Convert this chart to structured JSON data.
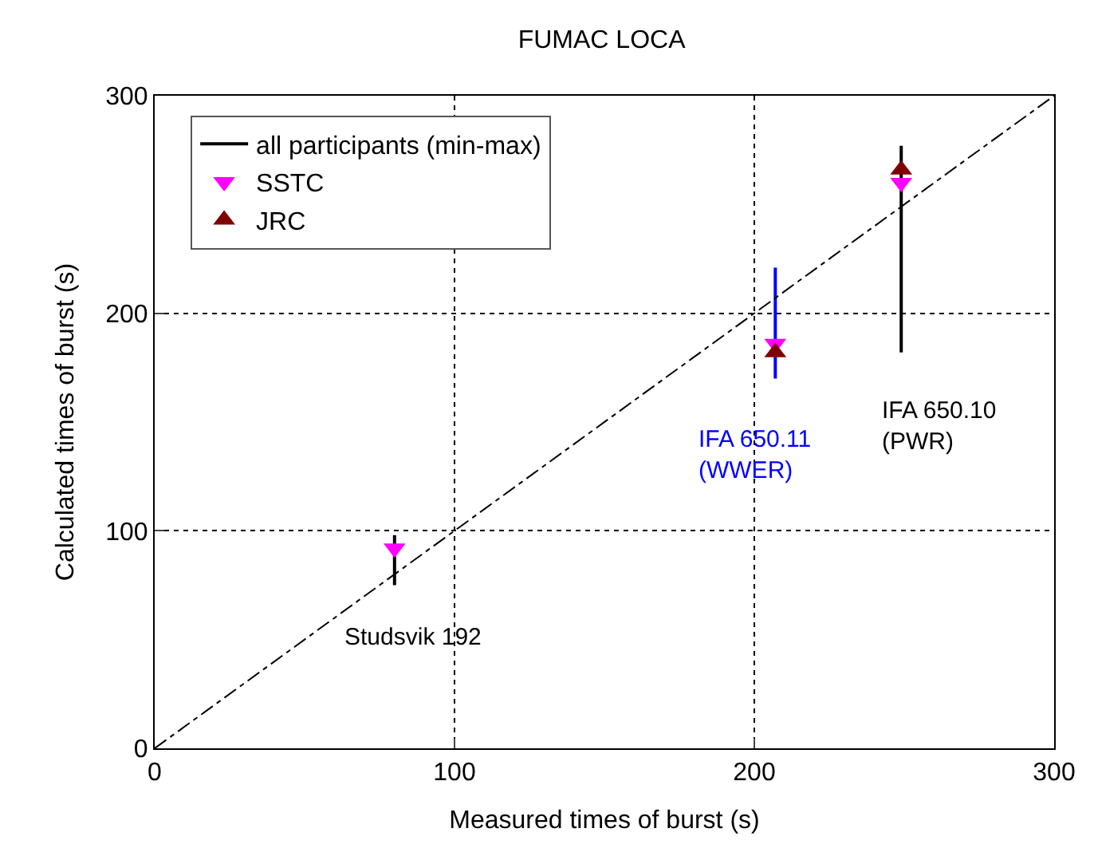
{
  "chart_data": {
    "type": "scatter",
    "title": "FUMAC LOCA",
    "xlabel": "Measured times of burst (s)",
    "ylabel": "Calculated times of burst (s)",
    "xlim": [
      0,
      300
    ],
    "ylim": [
      0,
      300
    ],
    "xticks": [
      0,
      100,
      200,
      300
    ],
    "yticks": [
      0,
      100,
      200,
      300
    ],
    "grid": true,
    "legend": "top left",
    "series": [
      {
        "type": "line",
        "name": "all participants (min-max)",
        "color": "#000000",
        "x": [
          80,
          80,
          null,
          249,
          249
        ],
        "values": [
          75,
          98,
          null,
          182,
          277
        ],
        "marker": "none",
        "line_style": "solid"
      },
      {
        "type": "line",
        "color": "#0000ff",
        "x": [
          207,
          207
        ],
        "values": [
          170,
          221
        ],
        "marker": "none",
        "line_style": "solid"
      },
      {
        "type": "line",
        "color": "#000000",
        "x": [
          0,
          300
        ],
        "values": [
          0,
          300
        ],
        "marker": "none",
        "line_style": "dashed"
      },
      {
        "name": "SSTC",
        "color": "#ff00ff",
        "x": [
          80,
          207,
          249
        ],
        "values": [
          92,
          186,
          260
        ],
        "marker": "triangle-down"
      },
      {
        "name": "JRC",
        "color": "#800000",
        "x": [
          207,
          249
        ],
        "values": [
          182,
          266
        ],
        "marker": "triangle"
      }
    ],
    "annotations": [
      {
        "text": "Studsvik 192",
        "x": 80,
        "y": 75
      },
      {
        "text": "IFA 650.11\n(WWER)",
        "x": 207,
        "y": 170
      },
      {
        "text": "IFA 650.10\n(PWR)",
        "x": 249,
        "y": 182
      }
    ]
  }
}
